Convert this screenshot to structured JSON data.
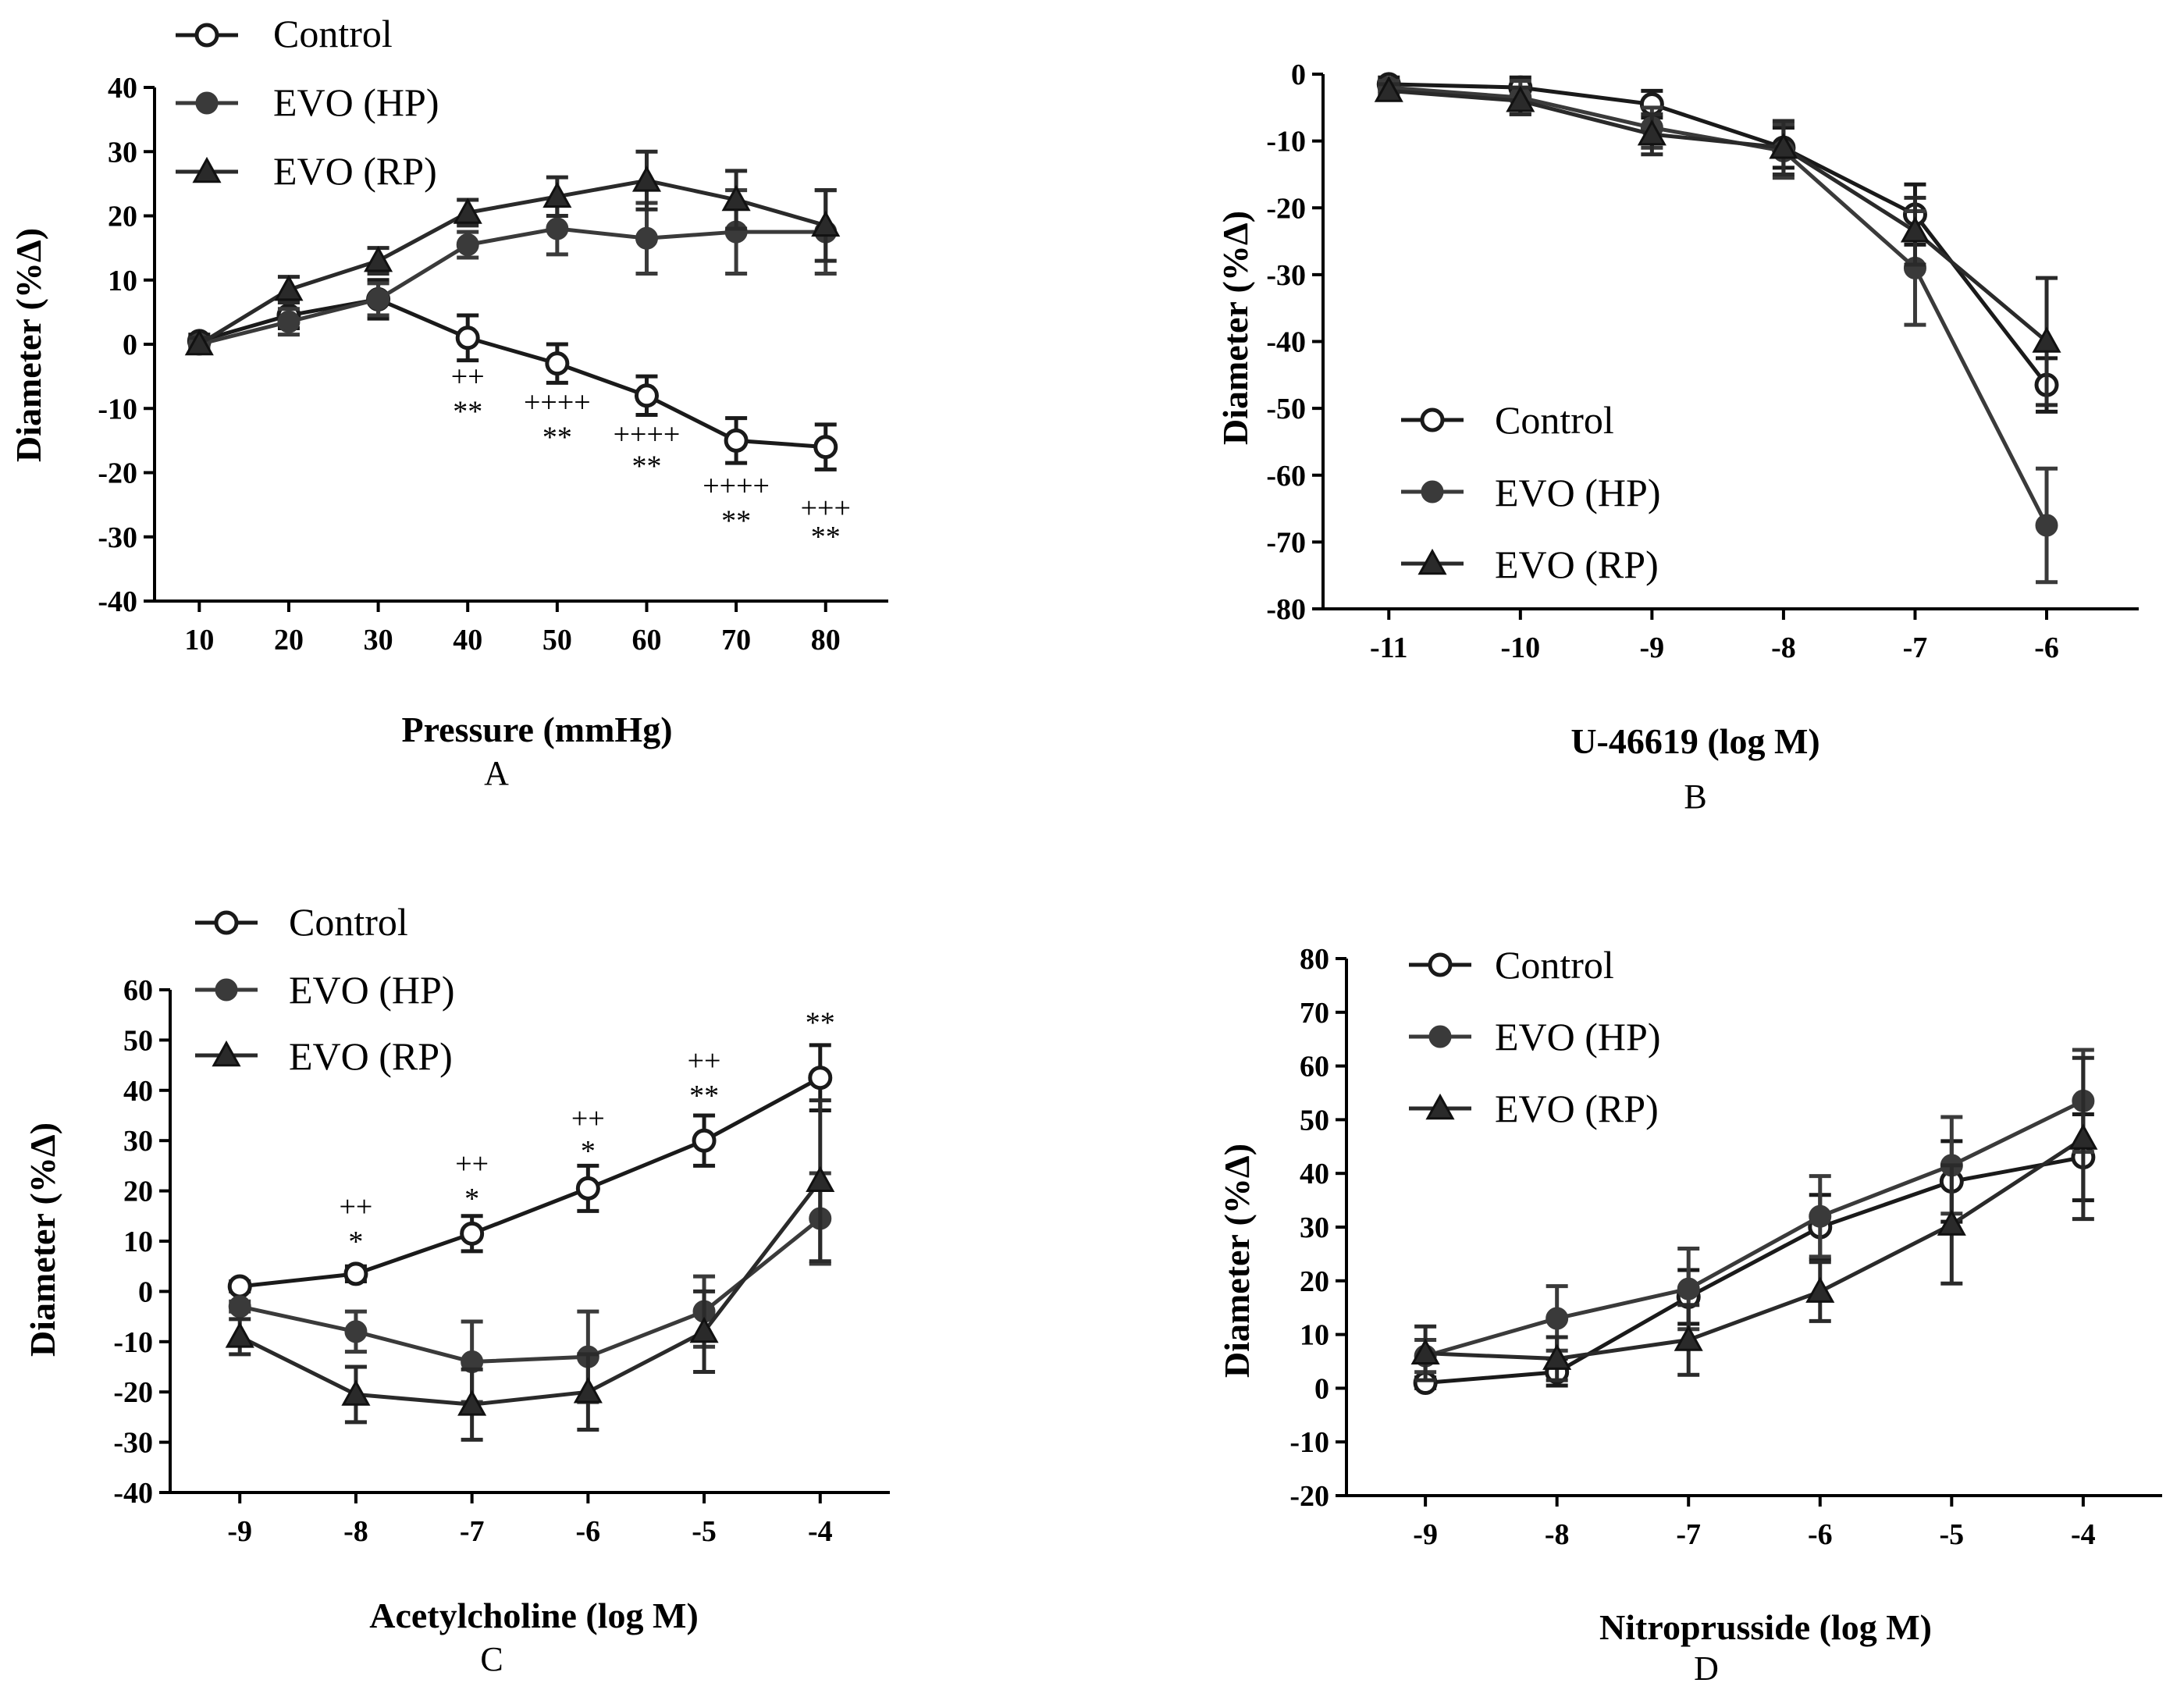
{
  "series_styles": {
    "control_color": "#1a1a1a",
    "hp_color": "#3a3a3a",
    "rp_color": "#2a2a2a",
    "control_marker": "open-circle",
    "hp_marker": "filled-circle",
    "rp_marker": "filled-triangle"
  },
  "chart_data": [
    {
      "panel": "A",
      "type": "line",
      "xlabel": "Pressure (mmHg)",
      "ylabel": "Diameter (%Δ)",
      "xlim": [
        5,
        87
      ],
      "ylim": [
        -40,
        40
      ],
      "xticks": [
        10,
        20,
        30,
        40,
        50,
        60,
        70,
        80
      ],
      "xtick_labels": [
        "10",
        "20",
        "30",
        "40",
        "50",
        "60",
        "70",
        "80"
      ],
      "yticks": [
        -40,
        -30,
        -20,
        -10,
        0,
        10,
        20,
        30,
        40
      ],
      "legend_position": "top-left",
      "series": [
        {
          "name": "Control",
          "marker": "open-circle",
          "x": [
            10,
            20,
            30,
            40,
            50,
            60,
            70,
            80
          ],
          "values": [
            0.5,
            4.5,
            7,
            1,
            -3,
            -8,
            -15,
            -16
          ],
          "errors": [
            1,
            2,
            3,
            3.5,
            3,
            3,
            3.5,
            3.5
          ]
        },
        {
          "name": "EVO (HP)",
          "marker": "filled-circle",
          "x": [
            10,
            20,
            30,
            40,
            50,
            60,
            70,
            80
          ],
          "values": [
            0,
            3.5,
            7,
            15.5,
            18,
            16.5,
            17.5,
            17.5
          ],
          "errors": [
            1,
            2,
            2.5,
            2,
            4,
            5.5,
            6.5,
            6.5
          ]
        },
        {
          "name": "EVO (RP)",
          "marker": "filled-triangle",
          "x": [
            10,
            20,
            30,
            40,
            50,
            60,
            70,
            80
          ],
          "values": [
            0,
            8.5,
            13,
            20.5,
            23,
            25.5,
            22.5,
            18.5
          ],
          "errors": [
            1,
            2,
            2,
            2,
            3,
            4.5,
            4.5,
            5.5
          ]
        }
      ],
      "annotations": [
        {
          "x": 40,
          "y": -6.5,
          "text": "++"
        },
        {
          "x": 40,
          "y": -12,
          "text": "**"
        },
        {
          "x": 50,
          "y": -10.5,
          "text": "++++"
        },
        {
          "x": 50,
          "y": -16,
          "text": "**"
        },
        {
          "x": 60,
          "y": -15.5,
          "text": "++++"
        },
        {
          "x": 60,
          "y": -20.5,
          "text": "**"
        },
        {
          "x": 70,
          "y": -23.5,
          "text": "++++"
        },
        {
          "x": 70,
          "y": -29,
          "text": "**"
        },
        {
          "x": 80,
          "y": -27,
          "text": "+++"
        },
        {
          "x": 80,
          "y": -31.5,
          "text": "**"
        }
      ]
    },
    {
      "panel": "B",
      "type": "line",
      "xlabel": "U-46619 (log M)",
      "ylabel": "Diameter (%Δ)",
      "xlim": [
        -11.5,
        -5.3
      ],
      "ylim": [
        -80,
        0
      ],
      "xticks": [
        -11,
        -10,
        -9,
        -8,
        -7,
        -6
      ],
      "xtick_labels": [
        "-11",
        "-10",
        "-9",
        "-8",
        "-7",
        "-6"
      ],
      "yticks": [
        -80,
        -70,
        -60,
        -50,
        -40,
        -30,
        -20,
        -10,
        0
      ],
      "legend_position": "bottom-left",
      "series": [
        {
          "name": "Control",
          "marker": "open-circle",
          "x": [
            -11,
            -10,
            -9,
            -8,
            -7,
            -6
          ],
          "values": [
            -1.5,
            -2,
            -4.5,
            -11,
            -21,
            -46.5
          ],
          "errors": [
            1,
            1.5,
            2,
            3,
            4.5,
            4
          ]
        },
        {
          "name": "EVO (HP)",
          "marker": "filled-circle",
          "x": [
            -11,
            -10,
            -9,
            -8,
            -7,
            -6
          ],
          "values": [
            -2,
            -3.5,
            -8,
            -11.5,
            -29,
            -67.5
          ],
          "errors": [
            1,
            2.5,
            3,
            4,
            8.5,
            8.5
          ]
        },
        {
          "name": "EVO (RP)",
          "marker": "filled-triangle",
          "x": [
            -11,
            -10,
            -9,
            -8,
            -7,
            -6
          ],
          "values": [
            -2.5,
            -4,
            -9,
            -11,
            -23.5,
            -40
          ],
          "errors": [
            1,
            2,
            3,
            4,
            5,
            9.5
          ]
        }
      ],
      "annotations": []
    },
    {
      "panel": "C",
      "type": "line",
      "xlabel": "Acetylcholine (log M)",
      "ylabel": "Diameter (%Δ)",
      "xlim": [
        -9.6,
        -3.4
      ],
      "ylim": [
        -40,
        60
      ],
      "xticks": [
        -9,
        -8,
        -7,
        -6,
        -5,
        -4
      ],
      "xtick_labels": [
        "-9",
        "-8",
        "-7",
        "-6",
        "-5",
        "-4"
      ],
      "yticks": [
        -40,
        -30,
        -20,
        -10,
        0,
        10,
        20,
        30,
        40,
        50,
        60
      ],
      "legend_position": "top-left",
      "series": [
        {
          "name": "Control",
          "marker": "open-circle",
          "x": [
            -9,
            -8,
            -7,
            -6,
            -5,
            -4
          ],
          "values": [
            1,
            3.5,
            11.5,
            20.5,
            30,
            42.5
          ],
          "errors": [
            1,
            1.5,
            3.5,
            4.5,
            5,
            6.5
          ]
        },
        {
          "name": "EVO (HP)",
          "marker": "filled-circle",
          "x": [
            -9,
            -8,
            -7,
            -6,
            -5,
            -4
          ],
          "values": [
            -3,
            -8,
            -14,
            -13,
            -4,
            14.5
          ],
          "errors": [
            1,
            4,
            8,
            9,
            7,
            9
          ]
        },
        {
          "name": "EVO (RP)",
          "marker": "filled-triangle",
          "x": [
            -9,
            -8,
            -7,
            -6,
            -5,
            -4
          ],
          "values": [
            -9,
            -20.5,
            -22.5,
            -20,
            -8,
            22
          ],
          "errors": [
            3.5,
            5.5,
            7,
            7.5,
            8,
            16
          ]
        }
      ],
      "annotations": [
        {
          "x": -8,
          "y": 15,
          "text": "++"
        },
        {
          "x": -8,
          "y": 8,
          "text": "*"
        },
        {
          "x": -7,
          "y": 23.5,
          "text": "++"
        },
        {
          "x": -7,
          "y": 16.5,
          "text": "*"
        },
        {
          "x": -6,
          "y": 32.5,
          "text": "++"
        },
        {
          "x": -6,
          "y": 26,
          "text": "*"
        },
        {
          "x": -5,
          "y": 44,
          "text": "++"
        },
        {
          "x": -5,
          "y": 37,
          "text": "**"
        },
        {
          "x": -4,
          "y": 51.5,
          "text": "**"
        }
      ]
    },
    {
      "panel": "D",
      "type": "line",
      "xlabel": "Nitroprusside (log M)",
      "ylabel": "Diameter (%Δ)",
      "xlim": [
        -9.6,
        -3.4
      ],
      "ylim": [
        -20,
        80
      ],
      "xticks": [
        -9,
        -8,
        -7,
        -6,
        -5,
        -4
      ],
      "xtick_labels": [
        "-9",
        "-8",
        "-7",
        "-6",
        "-5",
        "-4"
      ],
      "yticks": [
        -20,
        -10,
        0,
        10,
        20,
        30,
        40,
        50,
        60,
        70,
        80
      ],
      "legend_position": "top-left",
      "series": [
        {
          "name": "Control",
          "marker": "open-circle",
          "x": [
            -9,
            -8,
            -7,
            -6,
            -5,
            -4
          ],
          "values": [
            1,
            3,
            17,
            30,
            38.5,
            43
          ],
          "errors": [
            1,
            2.5,
            5,
            6,
            7.5,
            8
          ]
        },
        {
          "name": "EVO (HP)",
          "marker": "filled-circle",
          "x": [
            -9,
            -8,
            -7,
            -6,
            -5,
            -4
          ],
          "values": [
            6,
            13,
            18.5,
            32,
            41.5,
            53.5
          ],
          "errors": [
            3,
            6,
            7.5,
            7.5,
            9,
            9.5
          ]
        },
        {
          "name": "EVO (RP)",
          "marker": "filled-triangle",
          "x": [
            -9,
            -8,
            -7,
            -6,
            -5,
            -4
          ],
          "values": [
            6.5,
            5.5,
            9,
            18,
            30.5,
            46.5
          ],
          "errors": [
            5,
            4,
            6.5,
            5.5,
            11,
            15
          ]
        }
      ],
      "annotations": []
    }
  ]
}
